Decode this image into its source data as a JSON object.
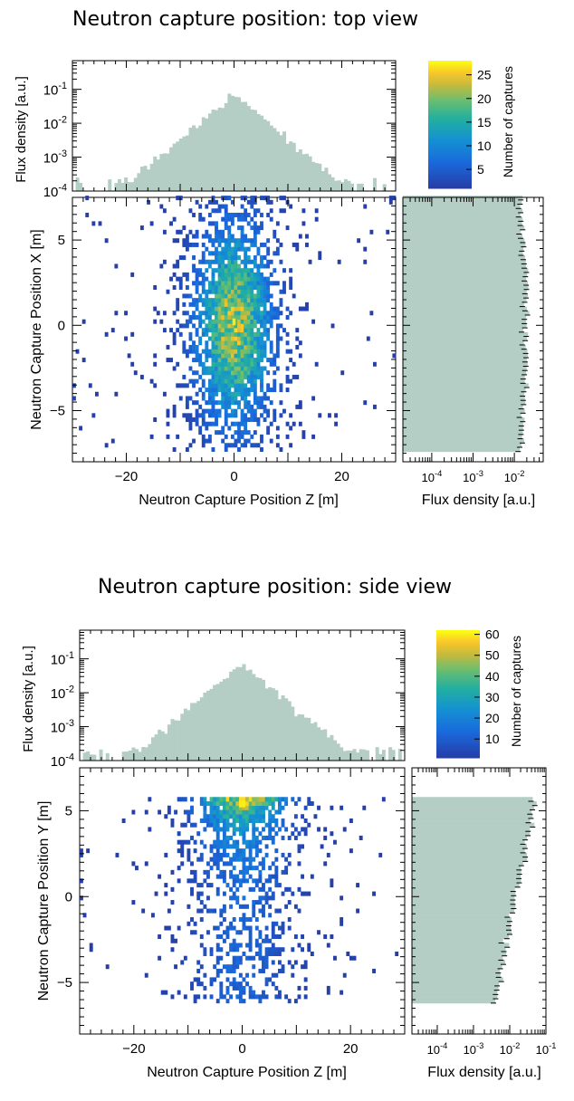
{
  "panels": [
    {
      "title": "Neutron capture position: top view",
      "colorbar": {
        "label": "Number of captures",
        "ticks": [
          5,
          10,
          15,
          20,
          25
        ],
        "max": 28
      },
      "top_hist": {
        "ylabel": "Flux density [a.u.]",
        "yticks": [
          "10^-1",
          "10^-2",
          "10^-3",
          "10^-4"
        ]
      },
      "main": {
        "xlabel": "Neutron Capture Position Z [m]",
        "ylabel": "Neutron Capture Position X [m]",
        "xticks": [
          "−20",
          "0",
          "20"
        ],
        "yticks": [
          "5",
          "0",
          "−5"
        ]
      },
      "side_hist": {
        "xlabel": "Flux density [a.u.]",
        "xticks": [
          "10^-4",
          "10^-3",
          "10^-2"
        ]
      }
    },
    {
      "title": "Neutron capture position: side view",
      "colorbar": {
        "label": "Number of captures",
        "ticks": [
          10,
          20,
          30,
          40,
          50,
          60
        ],
        "max": 62
      },
      "top_hist": {
        "ylabel": "Flux density [a.u.]",
        "yticks": [
          "10^-1",
          "10^-2",
          "10^-3",
          "10^-4"
        ]
      },
      "main": {
        "xlabel": "Neutron Capture Position Z [m]",
        "ylabel": "Neutron Capture Position Y [m]",
        "xticks": [
          "−20",
          "0",
          "20"
        ],
        "yticks": [
          "5",
          "0",
          "−5"
        ]
      },
      "side_hist": {
        "xlabel": "Flux density [a.u.]",
        "xticks": [
          "10^-4",
          "10^-3",
          "10^-2",
          "10^-1"
        ]
      }
    }
  ],
  "chart_data": [
    {
      "type": "heatmap",
      "title": "Neutron capture position: top view",
      "xlabel": "Neutron Capture Position Z [m]",
      "ylabel": "Neutron Capture Position X [m]",
      "xlim": [
        -30,
        30
      ],
      "ylim": [
        -8,
        7.5
      ],
      "x_range_of_captures": [
        -30,
        30
      ],
      "y_range_of_captures": [
        -7.4,
        7.4
      ],
      "peak": {
        "z": 0,
        "x": 0,
        "count": 27
      },
      "colorbar_label": "Number of captures",
      "colorbar_range": [
        1,
        28
      ],
      "top_histogram": {
        "ylabel": "Flux density [a.u.]",
        "yscale": "log",
        "ylim": [
          0.0001,
          0.7
        ],
        "peak": {
          "z": 0,
          "value": 0.07
        }
      },
      "side_histogram": {
        "xlabel": "Flux density [a.u.]",
        "xscale": "log",
        "xlim": [
          2e-05,
          0.05
        ],
        "peak": {
          "x": 0,
          "value": 0.02
        }
      }
    },
    {
      "type": "heatmap",
      "title": "Neutron capture position: side view",
      "xlabel": "Neutron Capture Position Z [m]",
      "ylabel": "Neutron Capture Position Y [m]",
      "xlim": [
        -30,
        30
      ],
      "ylim": [
        -8,
        7.5
      ],
      "x_range_of_captures": [
        -30,
        30
      ],
      "y_range_of_captures": [
        -6.2,
        5.6
      ],
      "peak": {
        "z": 0,
        "y": 5.5,
        "count": 60
      },
      "colorbar_label": "Number of captures",
      "colorbar_range": [
        1,
        62
      ],
      "top_histogram": {
        "ylabel": "Flux density [a.u.]",
        "yscale": "log",
        "ylim": [
          0.0001,
          0.7
        ],
        "peak": {
          "z": 0,
          "value": 0.07
        }
      },
      "side_histogram": {
        "xlabel": "Flux density [a.u.]",
        "xscale": "log",
        "xlim": [
          2e-05,
          0.1
        ],
        "peak": {
          "y": 5.5,
          "value": 0.05
        }
      }
    }
  ]
}
